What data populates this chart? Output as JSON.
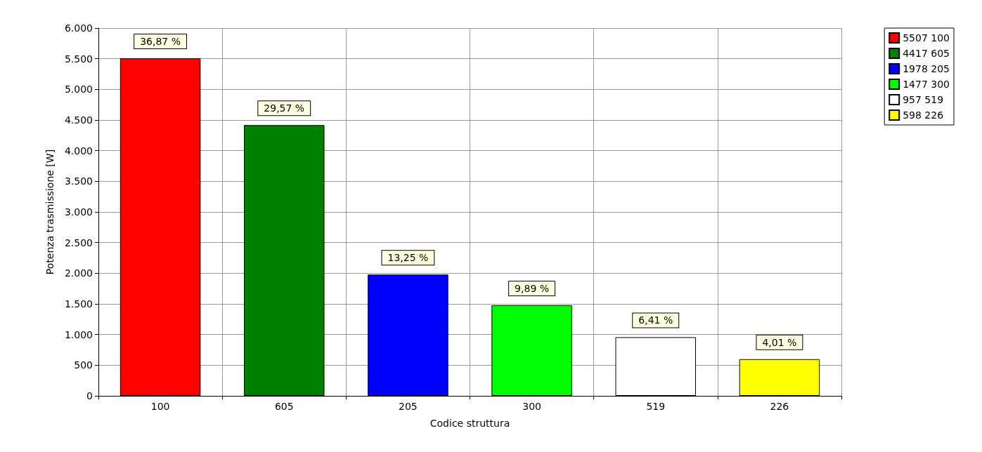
{
  "chart_data": {
    "type": "bar",
    "xlabel": "Codice struttura",
    "ylabel": "Potenza trasmissione [W]",
    "categories": [
      "100",
      "605",
      "205",
      "300",
      "519",
      "226"
    ],
    "stacked": true,
    "series": [
      {
        "name": "5507 100",
        "color": "#ff0000",
        "values": [
          5507,
          null,
          null,
          null,
          null,
          null
        ]
      },
      {
        "name": "4417 605",
        "color": "#008000",
        "values": [
          null,
          4417,
          null,
          null,
          null,
          null
        ]
      },
      {
        "name": "1978 205",
        "color": "#0000ff",
        "values": [
          null,
          null,
          1978,
          null,
          null,
          null
        ]
      },
      {
        "name": "1477 300",
        "color": "#00ff00",
        "values": [
          null,
          null,
          null,
          1477,
          null,
          null
        ]
      },
      {
        "name": "957 519",
        "color": "#ffffff",
        "values": [
          null,
          null,
          null,
          null,
          957,
          null
        ]
      },
      {
        "name": "598 226",
        "color": "#ffff00",
        "values": [
          null,
          null,
          null,
          null,
          null,
          598
        ]
      }
    ],
    "annotations": [
      {
        "text": "36,87 %",
        "x": "100",
        "y": 5507
      },
      {
        "text": "29,57 %",
        "x": "605",
        "y": 4417
      },
      {
        "text": "13,25 %",
        "x": "205",
        "y": 1978
      },
      {
        "text": "9,89 %",
        "x": "300",
        "y": 1477
      },
      {
        "text": "6,41 %",
        "x": "519",
        "y": 957
      },
      {
        "text": "4,01 %",
        "x": "226",
        "y": 598
      }
    ],
    "ylim": [
      0,
      6000
    ],
    "yticks": [
      0,
      500,
      {
        "value": 1000,
        "label": "1.000"
      },
      {
        "value": 1500,
        "label": "1.500"
      },
      {
        "value": 2000,
        "label": "2.000"
      },
      {
        "value": 2500,
        "label": "2.500"
      },
      {
        "value": 3000,
        "label": "3.000"
      },
      {
        "value": 3500,
        "label": "3.500"
      },
      {
        "value": 4000,
        "label": "4.000"
      },
      {
        "value": 4500,
        "label": "4.500"
      },
      {
        "value": 5000,
        "label": "5.000"
      },
      {
        "value": 5500,
        "label": "5.500"
      },
      {
        "value": 6000,
        "label": "6.000"
      }
    ],
    "grid": true,
    "legend": "top right"
  }
}
